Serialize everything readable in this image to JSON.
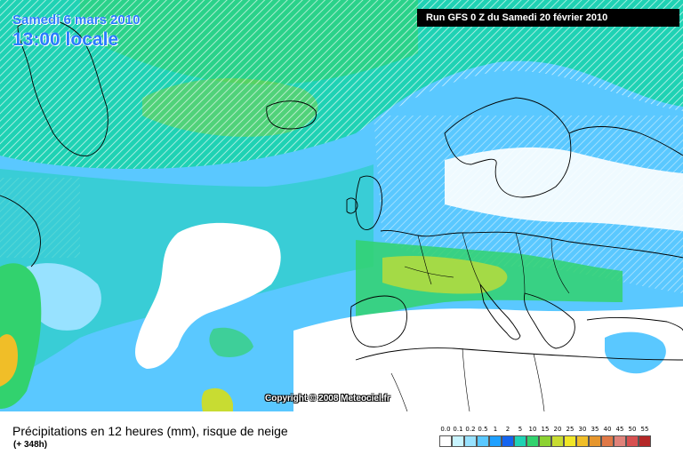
{
  "header": {
    "date": "Samedi 6 mars 2010",
    "time": "13:00 locale",
    "run": "Run GFS 0 Z du Samedi 20 février 2010"
  },
  "map": {
    "copyright": "Copyright © 2008 Meteociel.fr",
    "colors": {
      "land": "#ffffff",
      "border": "#000000",
      "snow_hatch": "#ffffff"
    }
  },
  "footer": {
    "title": "Précipitations en 12 heures (mm), risque de neige",
    "subtitle": "(+ 348h)"
  },
  "legend": {
    "labels": [
      "0.0",
      "0.1",
      "0.2",
      "0.5",
      "1",
      "2",
      "5",
      "10",
      "15",
      "20",
      "25",
      "30",
      "35",
      "40",
      "45",
      "50",
      "55"
    ],
    "colors": [
      "#ffffff",
      "#c8f4ff",
      "#98e2ff",
      "#5ac8ff",
      "#1fa0ff",
      "#1464f0",
      "#1fd2b4",
      "#32d26e",
      "#8cd232",
      "#c8dc32",
      "#f0e628",
      "#f0be28",
      "#e6962d",
      "#e07846",
      "#e0827a",
      "#d75050",
      "#b42828"
    ]
  }
}
